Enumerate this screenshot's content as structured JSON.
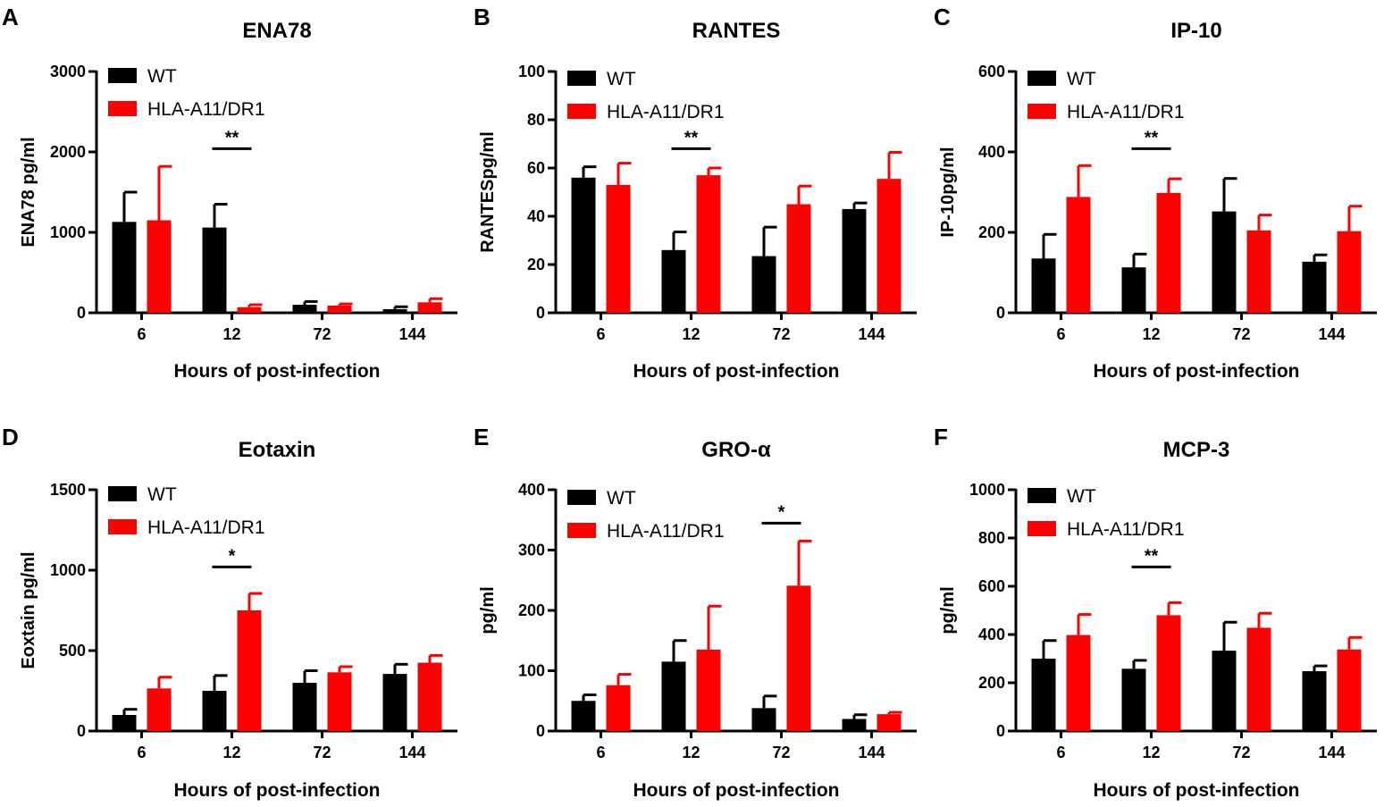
{
  "colors": {
    "wt": "#000000",
    "hla": "#ff0000"
  },
  "chart_data": [
    {
      "type": "bar",
      "letter": "A",
      "title": "ENA78",
      "ylabel": "ENA78 pg/ml",
      "xlabel": "Hours of post-infection",
      "categories": [
        "6",
        "12",
        "72",
        "144"
      ],
      "ylim": [
        0,
        3000
      ],
      "yticks": [
        0,
        1000,
        2000,
        3000
      ],
      "tick_labels": [
        "0",
        "1000",
        "2000",
        "3000"
      ],
      "series": [
        {
          "name": "WT",
          "color_key": "wt",
          "values": [
            1130,
            1060,
            100,
            45
          ],
          "errors": [
            370,
            290,
            40,
            30
          ]
        },
        {
          "name": "HLA-A11/DR1",
          "color_key": "hla",
          "values": [
            1150,
            70,
            90,
            130
          ],
          "errors": [
            670,
            30,
            20,
            45
          ]
        }
      ],
      "significance": [
        {
          "label": "**",
          "category_index": 1
        }
      ]
    },
    {
      "type": "bar",
      "letter": "B",
      "title": "RANTES",
      "ylabel": "RANTESpg/ml",
      "xlabel": "Hours of post-infection",
      "categories": [
        "6",
        "12",
        "72",
        "144"
      ],
      "ylim": [
        0,
        100
      ],
      "yticks": [
        0,
        20,
        40,
        60,
        80,
        100
      ],
      "tick_labels": [
        "0",
        "20",
        "40",
        "60",
        "80",
        "100"
      ],
      "series": [
        {
          "name": "WT",
          "color_key": "wt",
          "values": [
            56,
            26,
            23.5,
            43
          ],
          "errors": [
            4.5,
            7.5,
            12,
            2.5
          ]
        },
        {
          "name": "HLA-A11/DR1",
          "color_key": "hla",
          "values": [
            53,
            57,
            45,
            55.5
          ],
          "errors": [
            9,
            3,
            7.5,
            11
          ]
        }
      ],
      "significance": [
        {
          "label": "**",
          "category_index": 1
        }
      ]
    },
    {
      "type": "bar",
      "letter": "C",
      "title": "IP-10",
      "ylabel": "IP-10pg/ml",
      "xlabel": "Hours of post-infection",
      "categories": [
        "6",
        "12",
        "72",
        "144"
      ],
      "ylim": [
        0,
        600
      ],
      "yticks": [
        0,
        200,
        400,
        600
      ],
      "tick_labels": [
        "0",
        "200",
        "400",
        "600"
      ],
      "series": [
        {
          "name": "WT",
          "color_key": "wt",
          "values": [
            135,
            113,
            252,
            127
          ],
          "errors": [
            60,
            33,
            82,
            17
          ]
        },
        {
          "name": "HLA-A11/DR1",
          "color_key": "hla",
          "values": [
            288,
            298,
            205,
            203
          ],
          "errors": [
            78,
            35,
            38,
            62
          ]
        }
      ],
      "significance": [
        {
          "label": "**",
          "category_index": 1
        }
      ]
    },
    {
      "type": "bar",
      "letter": "D",
      "title": "Eotaxin",
      "ylabel": "Eoxtain pg/ml",
      "xlabel": "Hours of post-infection",
      "categories": [
        "6",
        "12",
        "72",
        "144"
      ],
      "ylim": [
        0,
        1500
      ],
      "yticks": [
        0,
        500,
        1000,
        1500
      ],
      "tick_labels": [
        "0",
        "500",
        "1000",
        "1500"
      ],
      "series": [
        {
          "name": "WT",
          "color_key": "wt",
          "values": [
            100,
            250,
            300,
            355
          ],
          "errors": [
            35,
            95,
            75,
            60
          ]
        },
        {
          "name": "HLA-A11/DR1",
          "color_key": "hla",
          "values": [
            265,
            750,
            365,
            425
          ],
          "errors": [
            70,
            105,
            35,
            45
          ]
        }
      ],
      "significance": [
        {
          "label": "*",
          "category_index": 1
        }
      ]
    },
    {
      "type": "bar",
      "letter": "E",
      "title": "GRO-α",
      "ylabel": "pg/ml",
      "xlabel": "Hours of post-infection",
      "categories": [
        "6",
        "12",
        "72",
        "144"
      ],
      "ylim": [
        0,
        400
      ],
      "yticks": [
        0,
        100,
        200,
        300,
        400
      ],
      "tick_labels": [
        "0",
        "100",
        "200",
        "300",
        "400"
      ],
      "series": [
        {
          "name": "WT",
          "color_key": "wt",
          "values": [
            50,
            115,
            38,
            20
          ],
          "errors": [
            10,
            35,
            20,
            7
          ]
        },
        {
          "name": "HLA-A11/DR1",
          "color_key": "hla",
          "values": [
            76,
            135,
            241,
            28
          ],
          "errors": [
            18,
            72,
            74,
            3
          ]
        }
      ],
      "significance": [
        {
          "label": "*",
          "category_index": 2
        }
      ]
    },
    {
      "type": "bar",
      "letter": "F",
      "title": "MCP-3",
      "ylabel": "pg/ml",
      "xlabel": "Hours of post-infection",
      "categories": [
        "6",
        "12",
        "72",
        "144"
      ],
      "ylim": [
        0,
        1000
      ],
      "yticks": [
        0,
        200,
        400,
        600,
        800,
        1000
      ],
      "tick_labels": [
        "0",
        "200",
        "400",
        "600",
        "800",
        "1000"
      ],
      "series": [
        {
          "name": "WT",
          "color_key": "wt",
          "values": [
            300,
            258,
            333,
            248
          ],
          "errors": [
            75,
            35,
            118,
            22
          ]
        },
        {
          "name": "HLA-A11/DR1",
          "color_key": "hla",
          "values": [
            398,
            480,
            428,
            338
          ],
          "errors": [
            85,
            52,
            60,
            50
          ]
        }
      ],
      "significance": [
        {
          "label": "**",
          "category_index": 1
        }
      ]
    }
  ]
}
